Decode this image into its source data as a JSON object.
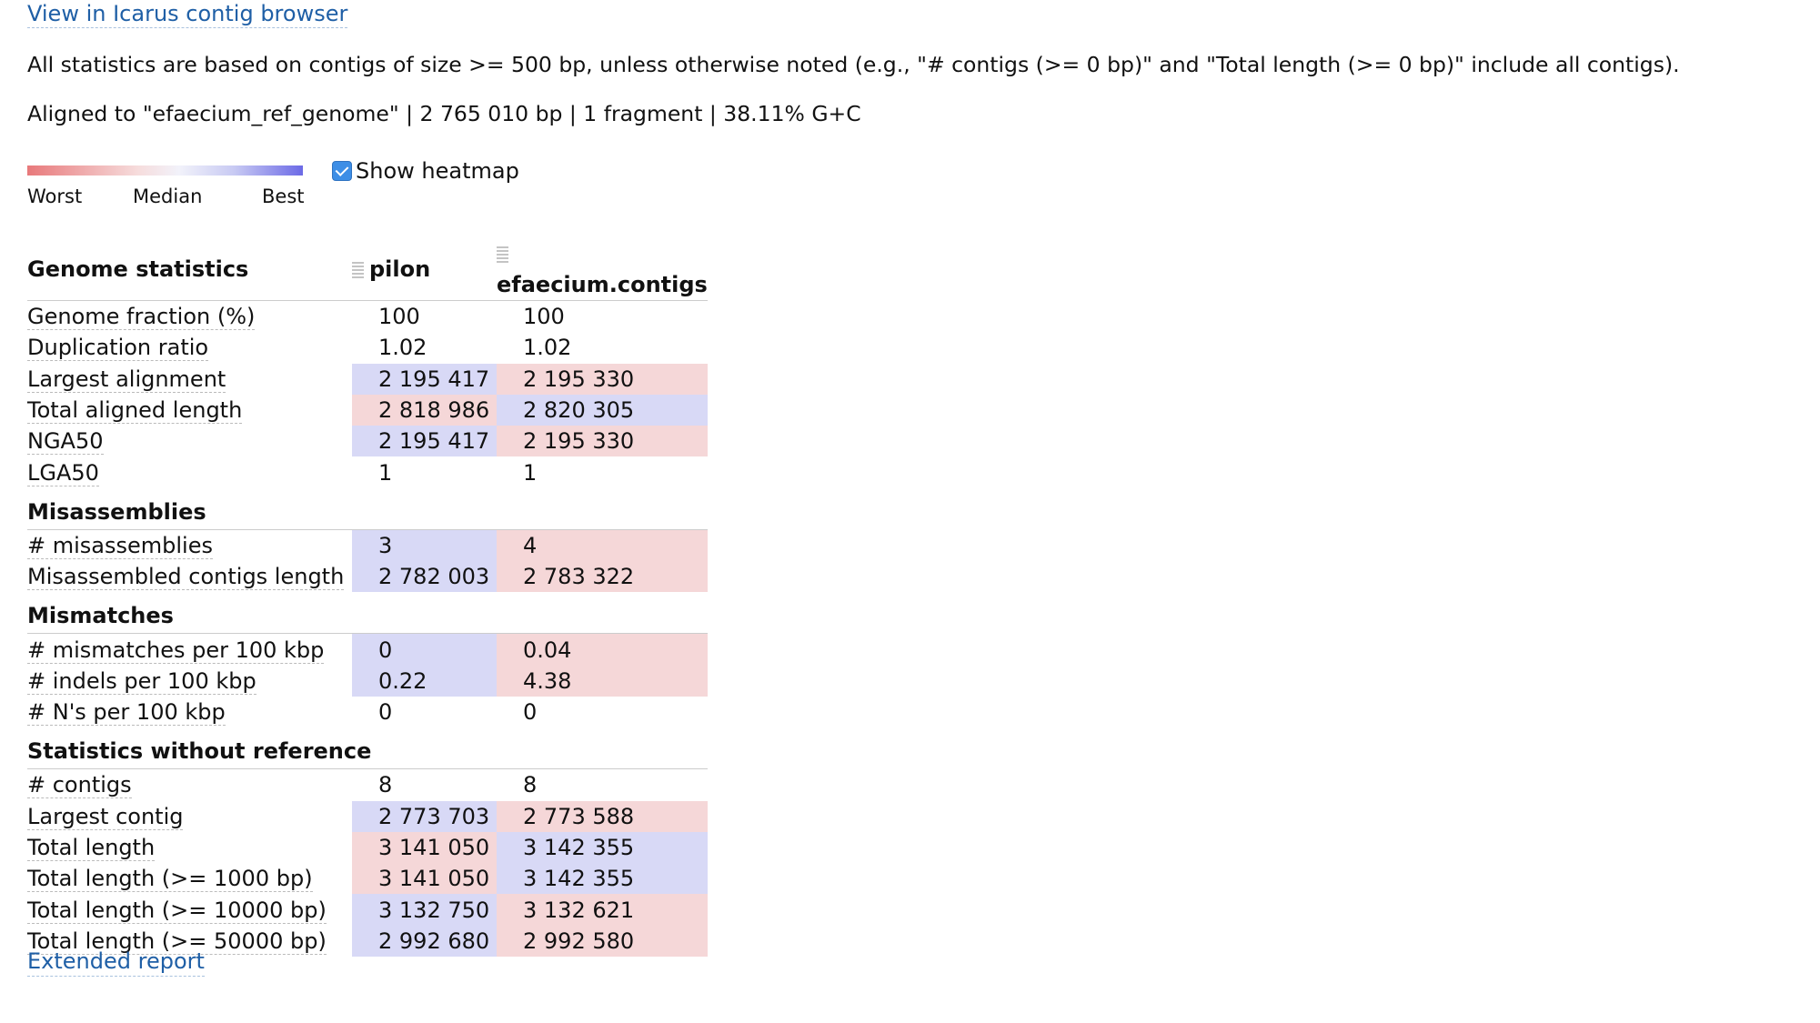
{
  "links": {
    "icarus": "View in Icarus contig browser",
    "extended": "Extended report"
  },
  "notes": {
    "line1": "All statistics are based on contigs of size >= 500 bp, unless otherwise noted (e.g., \"# contigs (>= 0 bp)\" and \"Total length (>= 0 bp)\" include all contigs).",
    "line2": "Aligned to \"efaecium_ref_genome\" | 2 765 010 bp | 1 fragment | 38.11% G+C"
  },
  "legend": {
    "worst": "Worst",
    "median": "Median",
    "best": "Best",
    "show_heatmap": "Show heatmap",
    "show_heatmap_checked": true
  },
  "colors": {
    "better": "#d8d9f6",
    "worse": "#f5d7d8",
    "link": "#1f5fa6"
  },
  "table": {
    "header": {
      "title": "Genome statistics",
      "col1": "pilon",
      "col2": "efaecium.contigs"
    },
    "genome": [
      {
        "name": "Genome fraction (%)",
        "v1": "100",
        "v2": "100"
      },
      {
        "name": "Duplication ratio",
        "v1": "1.02",
        "v2": "1.02"
      },
      {
        "name": "Largest alignment",
        "v1": "2 195 417",
        "v2": "2 195 330"
      },
      {
        "name": "Total aligned length",
        "v1": "2 818 986",
        "v2": "2 820 305"
      },
      {
        "name": "NGA50",
        "v1": "2 195 417",
        "v2": "2 195 330"
      },
      {
        "name": "LGA50",
        "v1": "1",
        "v2": "1"
      }
    ],
    "mis_title": "Misassemblies",
    "mis": [
      {
        "name": "# misassemblies",
        "v1": "3",
        "v2": "4"
      },
      {
        "name": "Misassembled contigs length",
        "v1": "2 782 003",
        "v2": "2 783 322"
      }
    ],
    "mm_title": "Mismatches",
    "mm": [
      {
        "name": "# mismatches per 100 kbp",
        "v1": "0",
        "v2": "0.04"
      },
      {
        "name": "# indels per 100 kbp",
        "v1": "0.22",
        "v2": "4.38"
      },
      {
        "name": "# N's per 100 kbp",
        "v1": "0",
        "v2": "0"
      }
    ],
    "nr_title": "Statistics without reference",
    "nr": [
      {
        "name": "# contigs",
        "v1": "8",
        "v2": "8"
      },
      {
        "name": "Largest contig",
        "v1": "2 773 703",
        "v2": "2 773 588"
      },
      {
        "name": "Total length",
        "v1": "3 141 050",
        "v2": "3 142 355"
      },
      {
        "name": "Total length (>= 1000 bp)",
        "v1": "3 141 050",
        "v2": "3 142 355"
      },
      {
        "name": "Total length (>= 10000 bp)",
        "v1": "3 132 750",
        "v2": "3 132 621"
      },
      {
        "name": "Total length (>= 50000 bp)",
        "v1": "2 992 680",
        "v2": "2 992 580"
      }
    ]
  }
}
